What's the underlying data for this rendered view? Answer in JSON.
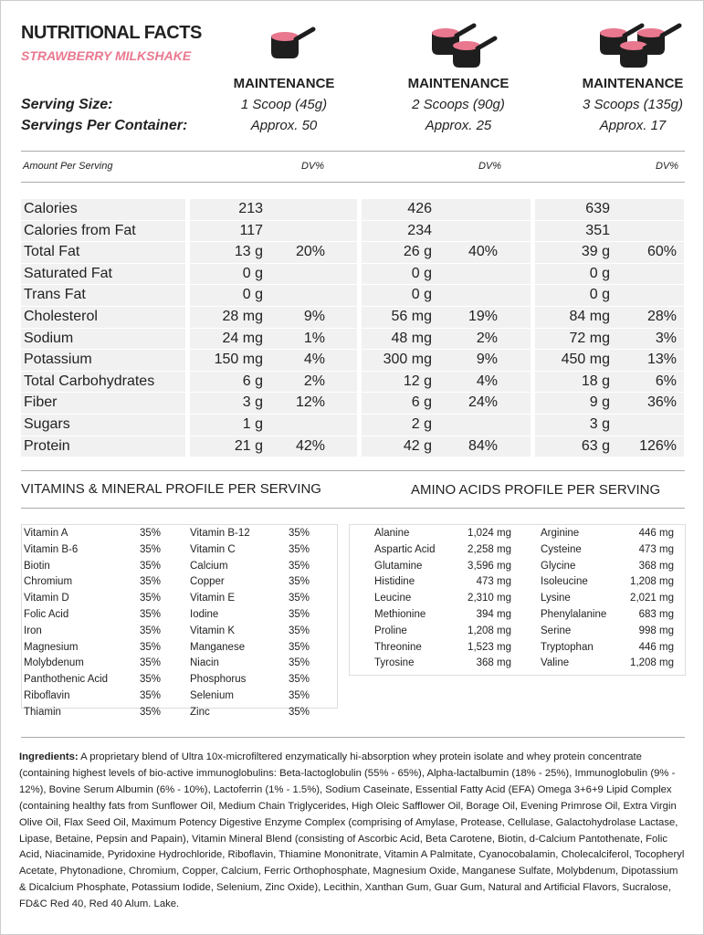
{
  "header": {
    "title": "NUTRITIONAL FACTS",
    "subtitle": "STRAWBERRY MILKSHAKE"
  },
  "serving_labels": {
    "size": "Serving Size:",
    "per_container": "Servings Per Container:"
  },
  "columns": [
    {
      "heading": "MAINTENANCE",
      "serving": "1 Scoop (45g)",
      "servings": "Approx. 50"
    },
    {
      "heading": "MAINTENANCE",
      "serving": "2 Scoops (90g)",
      "servings": "Approx. 25"
    },
    {
      "heading": "MAINTENANCE",
      "serving": "3 Scoops (135g)",
      "servings": "Approx. 17"
    }
  ],
  "amount_header": "Amount Per Serving",
  "dv_header": "DV%",
  "nutrients": [
    {
      "name": "Calories",
      "amounts": [
        "213",
        "426",
        "639"
      ]
    },
    {
      "name": "Calories from Fat",
      "amounts": [
        "117",
        "234",
        "351"
      ]
    },
    {
      "name": "Total Fat",
      "amounts": [
        "13 g",
        "26 g",
        "39 g"
      ],
      "dv": [
        "20%",
        "40%",
        "60%"
      ]
    },
    {
      "name": "Saturated Fat",
      "amounts": [
        "0 g",
        "0 g",
        "0 g"
      ]
    },
    {
      "name": "Trans Fat",
      "amounts": [
        "0 g",
        "0 g",
        "0 g"
      ]
    },
    {
      "name": "Cholesterol",
      "amounts": [
        "28 mg",
        "56 mg",
        "84 mg"
      ],
      "dv": [
        "9%",
        "19%",
        "28%"
      ]
    },
    {
      "name": "Sodium",
      "amounts": [
        "24 mg",
        "48 mg",
        "72 mg"
      ],
      "dv": [
        "1%",
        "2%",
        "3%"
      ]
    },
    {
      "name": "Potassium",
      "amounts": [
        "150 mg",
        "300 mg",
        "450 mg"
      ],
      "dv": [
        "4%",
        "9%",
        "13%"
      ]
    },
    {
      "name": "Total Carbohydrates",
      "amounts": [
        "6 g",
        "12 g",
        "18 g"
      ],
      "dv": [
        "2%",
        "4%",
        "6%"
      ]
    },
    {
      "name": "Fiber",
      "amounts": [
        "3 g",
        "6 g",
        "9 g"
      ],
      "dv": [
        "12%",
        "24%",
        "36%"
      ]
    },
    {
      "name": "Sugars",
      "amounts": [
        "1 g",
        "2 g",
        "3 g"
      ]
    },
    {
      "name": "Protein",
      "amounts": [
        "21 g",
        "42 g",
        "63 g"
      ],
      "dv": [
        "42%",
        "84%",
        "126%"
      ]
    }
  ],
  "vitamins": {
    "title": "VITAMINS & MINERAL PROFILE PER SERVING",
    "left": [
      [
        "Vitamin A",
        "35%"
      ],
      [
        "Vitamin B-6",
        "35%"
      ],
      [
        "Biotin",
        "35%"
      ],
      [
        "Chromium",
        "35%"
      ],
      [
        "Vitamin D",
        "35%"
      ],
      [
        "Folic Acid",
        "35%"
      ],
      [
        "Iron",
        "35%"
      ],
      [
        "Magnesium",
        "35%"
      ],
      [
        "Molybdenum",
        "35%"
      ],
      [
        "Panthothenic Acid",
        "35%"
      ],
      [
        "Riboflavin",
        "35%"
      ],
      [
        "Thiamin",
        "35%"
      ]
    ],
    "right": [
      [
        "Vitamin B-12",
        "35%"
      ],
      [
        "Vitamin C",
        "35%"
      ],
      [
        "Calcium",
        "35%"
      ],
      [
        "Copper",
        "35%"
      ],
      [
        "Vitamin E",
        "35%"
      ],
      [
        "Iodine",
        "35%"
      ],
      [
        "Vitamin K",
        "35%"
      ],
      [
        "Manganese",
        "35%"
      ],
      [
        "Niacin",
        "35%"
      ],
      [
        "Phosphorus",
        "35%"
      ],
      [
        "Selenium",
        "35%"
      ],
      [
        "Zinc",
        "35%"
      ]
    ]
  },
  "amino": {
    "title": "AMINO ACIDS PROFILE PER SERVING",
    "left": [
      [
        "Alanine",
        "1,024 mg"
      ],
      [
        "Aspartic Acid",
        "2,258 mg"
      ],
      [
        "Glutamine",
        "3,596 mg"
      ],
      [
        "Histidine",
        "473 mg"
      ],
      [
        "Leucine",
        "2,310 mg"
      ],
      [
        "Methionine",
        "394 mg"
      ],
      [
        "Proline",
        "1,208 mg"
      ],
      [
        "Threonine",
        "1,523 mg"
      ],
      [
        "Tyrosine",
        "368 mg"
      ]
    ],
    "right": [
      [
        "Arginine",
        "446 mg"
      ],
      [
        "Cysteine",
        "473 mg"
      ],
      [
        "Glycine",
        "368 mg"
      ],
      [
        "Isoleucine",
        "1,208 mg"
      ],
      [
        "Lysine",
        "2,021 mg"
      ],
      [
        "Phenylalanine",
        "683 mg"
      ],
      [
        "Serine",
        "998 mg"
      ],
      [
        "Tryptophan",
        "446 mg"
      ],
      [
        "Valine",
        "1,208 mg"
      ]
    ]
  },
  "ingredients": {
    "label": "Ingredients:",
    "text": "A proprietary blend of Ultra 10x-microfiltered enzymatically hi-absorption whey protein isolate and whey protein concentrate (containing highest levels of bio-active immunoglobulins:  Beta-lactoglobulin (55% - 65%), Alpha-lactalbumin (18% - 25%), Immunoglobulin (9% - 12%), Bovine Serum Albumin (6% - 10%), Lactoferrin (1% - 1.5%), Sodium Caseinate, Essential Fatty Acid (EFA) Omega 3+6+9 Lipid Complex (containing healthy fats from Sunflower Oil, Medium Chain Triglycerides, High Oleic Safflower Oil, Borage Oil, Evening Primrose Oil, Extra Virgin Olive Oil, Flax Seed Oil, Maximum Potency Digestive Enzyme Complex (comprising of Amylase, Protease, Cellulase, Galactohydrolase Lactase, Lipase, Betaine, Pepsin and Papain), Vitamin Mineral Blend (consisting of Ascorbic Acid, Beta Carotene, Biotin, d-Calcium Pantothenate, Folic Acid, Niacinamide, Pyridoxine Hydrochloride, Riboflavin, Thiamine Mononitrate, Vitamin A Palmitate, Cyanocobalamin, Cholecalciferol, Tocopheryl Acetate, Phytonadione, Chromium, Copper, Calcium, Ferric Orthophosphate, Magnesium Oxide, Manganese Sulfate, Molybdenum, Dipotassium & Dicalcium Phosphate, Potassium Iodide, Selenium, Zinc Oxide), Lecithin, Xanthan Gum, Guar Gum, Natural and Artificial Flavors, Sucralose, FD&C Red 40, Red 40 Alum. Lake."
  }
}
